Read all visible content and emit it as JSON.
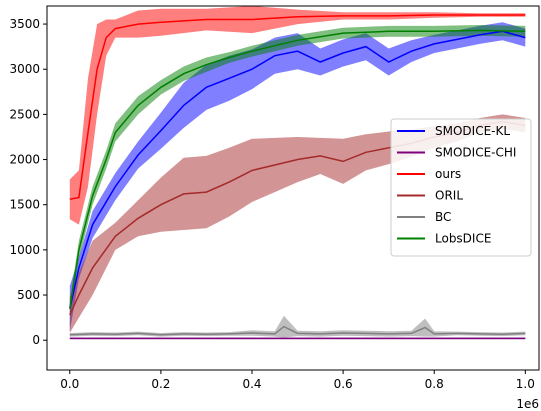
{
  "chart_data": {
    "type": "line",
    "title": "",
    "xlabel": "",
    "ylabel": "",
    "x_offset_label": "1e6",
    "xlim": [
      -0.05,
      1.03
    ],
    "ylim": [
      -330,
      3700
    ],
    "x_ticks": [
      0.0,
      0.2,
      0.4,
      0.6,
      0.8,
      1.0
    ],
    "x_tick_labels": [
      "0.0",
      "0.2",
      "0.4",
      "0.6",
      "0.8",
      "1.0"
    ],
    "y_ticks": [
      0,
      500,
      1000,
      1500,
      2000,
      2500,
      3000,
      3500
    ],
    "y_tick_labels": [
      "0",
      "500",
      "1000",
      "1500",
      "2000",
      "2500",
      "3000",
      "3500"
    ],
    "grid": false,
    "legend_position": "center-right",
    "series": [
      {
        "name": "SMODICE-KL",
        "color": "#0000ff",
        "x": [
          0.0,
          0.02,
          0.05,
          0.1,
          0.15,
          0.2,
          0.25,
          0.3,
          0.35,
          0.4,
          0.45,
          0.5,
          0.55,
          0.6,
          0.65,
          0.7,
          0.75,
          0.8,
          0.85,
          0.9,
          0.95,
          1.0
        ],
        "y": [
          350,
          800,
          1280,
          1700,
          2050,
          2320,
          2600,
          2800,
          2900,
          3000,
          3150,
          3200,
          3080,
          3180,
          3250,
          3080,
          3200,
          3280,
          3330,
          3380,
          3420,
          3350
        ],
        "band": [
          250,
          120,
          150,
          150,
          150,
          200,
          250,
          250,
          250,
          220,
          200,
          200,
          150,
          150,
          150,
          150,
          120,
          100,
          100,
          100,
          100,
          100
        ]
      },
      {
        "name": "SMODICE-CHI",
        "color": "#800080",
        "x": [
          0.0,
          0.1,
          0.2,
          0.3,
          0.4,
          0.5,
          0.6,
          0.7,
          0.8,
          0.9,
          1.0
        ],
        "y": [
          20,
          20,
          20,
          20,
          20,
          20,
          20,
          20,
          20,
          20,
          20
        ],
        "band": [
          10,
          10,
          10,
          10,
          10,
          10,
          10,
          10,
          10,
          10,
          10
        ]
      },
      {
        "name": "ours",
        "color": "#ff0000",
        "x": [
          0.0,
          0.02,
          0.04,
          0.06,
          0.08,
          0.1,
          0.15,
          0.2,
          0.3,
          0.4,
          0.5,
          0.6,
          0.7,
          0.8,
          0.9,
          1.0
        ],
        "y": [
          1560,
          1580,
          2300,
          3000,
          3350,
          3450,
          3500,
          3520,
          3550,
          3550,
          3580,
          3590,
          3590,
          3600,
          3600,
          3600
        ],
        "band": [
          220,
          300,
          600,
          500,
          200,
          100,
          150,
          150,
          120,
          150,
          80,
          40,
          40,
          30,
          20,
          20
        ]
      },
      {
        "name": "ORIL",
        "color": "#a52a2a",
        "x": [
          0.0,
          0.02,
          0.05,
          0.1,
          0.15,
          0.2,
          0.25,
          0.3,
          0.35,
          0.4,
          0.45,
          0.5,
          0.55,
          0.6,
          0.65,
          0.7,
          0.75,
          0.8,
          0.85,
          0.9,
          0.95,
          1.0
        ],
        "y": [
          280,
          500,
          800,
          1150,
          1350,
          1500,
          1620,
          1640,
          1750,
          1880,
          1940,
          2000,
          2040,
          1980,
          2080,
          2130,
          2180,
          2250,
          2300,
          2380,
          2420,
          2380
        ],
        "band": [
          200,
          250,
          300,
          150,
          200,
          300,
          400,
          400,
          380,
          350,
          300,
          250,
          200,
          250,
          200,
          180,
          150,
          120,
          100,
          80,
          80,
          80
        ]
      },
      {
        "name": "BC",
        "color": "#808080",
        "x": [
          0.0,
          0.05,
          0.1,
          0.15,
          0.2,
          0.25,
          0.3,
          0.35,
          0.4,
          0.45,
          0.47,
          0.5,
          0.55,
          0.6,
          0.65,
          0.7,
          0.75,
          0.78,
          0.8,
          0.85,
          0.9,
          0.95,
          1.0
        ],
        "y": [
          60,
          70,
          65,
          75,
          60,
          70,
          65,
          70,
          80,
          70,
          150,
          75,
          70,
          80,
          75,
          70,
          75,
          140,
          70,
          75,
          70,
          65,
          75
        ],
        "band": [
          20,
          20,
          20,
          20,
          20,
          20,
          20,
          20,
          30,
          30,
          120,
          30,
          30,
          30,
          30,
          30,
          30,
          100,
          30,
          20,
          20,
          20,
          20
        ]
      },
      {
        "name": "LobsDICE",
        "color": "#008000",
        "x": [
          0.0,
          0.02,
          0.05,
          0.08,
          0.1,
          0.15,
          0.2,
          0.25,
          0.3,
          0.35,
          0.4,
          0.45,
          0.5,
          0.55,
          0.6,
          0.7,
          0.8,
          0.9,
          1.0
        ],
        "y": [
          350,
          1000,
          1600,
          2000,
          2300,
          2600,
          2800,
          2950,
          3050,
          3130,
          3200,
          3260,
          3320,
          3360,
          3400,
          3420,
          3420,
          3430,
          3420
        ],
        "band": [
          80,
          100,
          100,
          100,
          100,
          100,
          80,
          80,
          80,
          60,
          60,
          60,
          60,
          60,
          60,
          60,
          60,
          60,
          60
        ]
      }
    ]
  }
}
